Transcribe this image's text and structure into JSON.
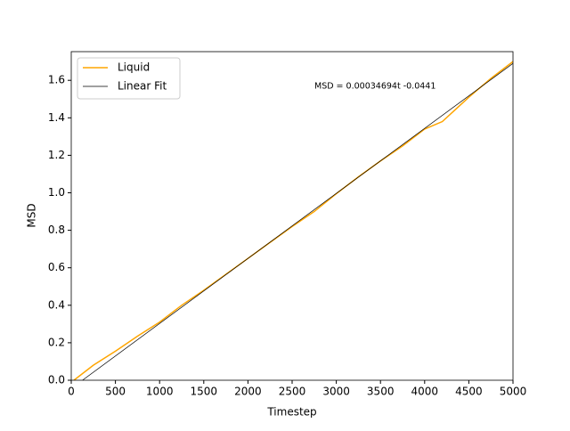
{
  "chart_data": {
    "type": "line",
    "xlabel": "Timestep",
    "ylabel": "MSD",
    "annotation": "MSD = 0.00034694t -0.0441",
    "xlim": [
      0,
      5000
    ],
    "ylim": [
      0,
      1.753
    ],
    "xticks": [
      0,
      500,
      1000,
      1500,
      2000,
      2500,
      3000,
      3500,
      4000,
      4500,
      5000
    ],
    "yticks": [
      {
        "value": 0,
        "label": "0.0"
      },
      0.2,
      0.4,
      0.6,
      0.8,
      {
        "value": 1,
        "label": "1.0"
      },
      1.2,
      1.4,
      1.6
    ],
    "legend": "upper left",
    "series": [
      {
        "name": "Liquid",
        "color": "#ffa500",
        "width": 1.5,
        "x": [
          30,
          250,
          500,
          750,
          1000,
          1250,
          1500,
          1750,
          2000,
          2250,
          2500,
          2750,
          3000,
          3250,
          3500,
          3750,
          4000,
          4200,
          4500,
          4750,
          5000
        ],
        "values": [
          0,
          0.08,
          0.155,
          0.235,
          0.31,
          0.4,
          0.48,
          0.565,
          0.65,
          0.735,
          0.82,
          0.9,
          0.995,
          1.085,
          1.17,
          1.25,
          1.34,
          1.38,
          1.51,
          1.61,
          1.7
        ]
      },
      {
        "name": "Linear Fit",
        "color": "#000000",
        "width": 0.7,
        "x": [
          127,
          5000
        ],
        "values": [
          0,
          1.6906
        ]
      }
    ]
  }
}
